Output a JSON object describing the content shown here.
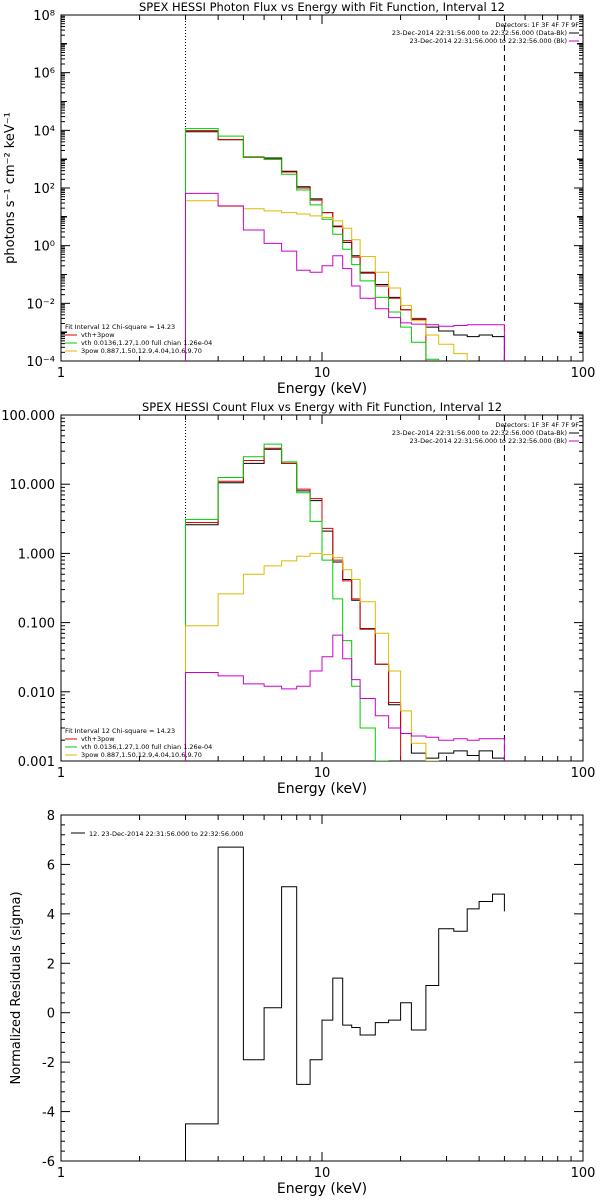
{
  "chart_data": [
    {
      "type": "line",
      "title": "SPEX HESSI Photon Flux vs Energy with Fit Function, Interval 12",
      "xlabel": "Energy (keV)",
      "ylabel": "photons s⁻¹ cm⁻² keV⁻¹",
      "xscale": "log",
      "yscale": "log",
      "xlim": [
        1,
        100
      ],
      "ylim": [
        0.0001,
        100000000
      ],
      "xticks": [
        "1",
        "10",
        "100"
      ],
      "yticks": [
        "10⁻⁴",
        "10⁻²",
        "10⁰",
        "10²",
        "10⁴",
        "10⁶",
        "10⁸"
      ],
      "vlines": [
        3.0,
        50.0
      ],
      "legend_top": {
        "detectors": "Detectors: 1F 3F 4F 7F 9F",
        "lines": [
          {
            "text": "23-Dec-2014 22:31:56.000 to 22:32:56.000 (Data-Bk)",
            "color": "#000000"
          },
          {
            "text": "23-Dec-2014 22:31:56.000 to 22:32:56.000 (Bk)",
            "color": "#cc00cc"
          }
        ]
      },
      "legend_bottom": [
        {
          "text": "Fit Interval 12   Chi-square = 14.23",
          "color": "#000000"
        },
        {
          "text": "vth+3pow",
          "color": "#dd0000"
        },
        {
          "text": "vth 0.0136,1.27,1.00  full chian 1.26e-04",
          "color": "#00cc00"
        },
        {
          "text": "3pow 0.887,1.50,12.9,4.04,10.6,9.70",
          "color": "#ddbb00"
        }
      ],
      "edges": [
        3.0,
        4.0,
        5.0,
        6.0,
        7.0,
        8.0,
        9.0,
        10.0,
        11.0,
        12.0,
        13.0,
        14.0,
        16.0,
        18.0,
        20.0,
        22.0,
        25.0,
        28.0,
        32.0,
        36.0,
        40.0,
        45.0,
        50.0
      ],
      "series": [
        {
          "name": "Data-Bk",
          "color": "#000000",
          "values": [
            9000,
            4700,
            1150,
            1100,
            380,
            110,
            42,
            14,
            4.5,
            1.3,
            0.45,
            0.12,
            0.045,
            0.016,
            0.006,
            0.0028,
            0.0015,
            0.0011,
            0.0008,
            0.0007,
            0.0008,
            0.0007
          ]
        },
        {
          "name": "vth+3pow",
          "color": "#dd0000",
          "values": [
            9800,
            4800,
            1200,
            1000,
            360,
            100,
            38,
            14,
            4.8,
            1.5,
            0.4,
            0.11,
            0.04,
            0.015,
            0.006,
            0.003
          ]
        },
        {
          "name": "vth",
          "color": "#00cc00",
          "values": [
            11500,
            6300,
            1150,
            1000,
            300,
            85,
            26,
            8.2,
            2.5,
            0.75,
            0.22,
            0.06,
            0.016,
            0.005,
            0.0015,
            0.00045,
            0.000115
          ]
        },
        {
          "name": "3pow",
          "color": "#ddbb00",
          "values": [
            36,
            23,
            19,
            16,
            14,
            12.5,
            10.8,
            9.5,
            7.2,
            4.0,
            1.6,
            0.42,
            0.12,
            0.034,
            0.0085,
            0.0025,
            0.0008,
            0.00038,
            0.00018
          ]
        },
        {
          "name": "Bk",
          "color": "#cc00cc",
          "values": [
            65,
            24,
            3.5,
            1.2,
            0.65,
            0.14,
            0.12,
            0.2,
            0.45,
            0.16,
            0.04,
            0.015,
            0.0065,
            0.0032,
            0.0021,
            0.0019,
            0.0018,
            0.0016,
            0.0017,
            0.0018,
            0.0018,
            0.0018
          ]
        }
      ]
    },
    {
      "type": "line",
      "title": "SPEX HESSI Count Flux vs Energy with Fit Function, Interval 12",
      "xlabel": "Energy (keV)",
      "ylabel": "",
      "xscale": "log",
      "yscale": "log",
      "xlim": [
        1,
        100
      ],
      "ylim": [
        0.001,
        100
      ],
      "xticks": [
        "1",
        "10",
        "100"
      ],
      "yticks": [
        "0.001",
        "0.010",
        "0.100",
        "1.000",
        "10.000",
        "100.000"
      ],
      "vlines": [
        3.0,
        50.0
      ],
      "legend_top": {
        "detectors": "Detectors: 1F 3F 4F 7F 9F",
        "lines": [
          {
            "text": "23-Dec-2014 22:31:56.000 to 22:32:56.000 (Data-Bk)",
            "color": "#000000"
          },
          {
            "text": "23-Dec-2014 22:31:56.000 to 22:32:56.000 (Bk)",
            "color": "#cc00cc"
          }
        ]
      },
      "legend_bottom": [
        {
          "text": "Fit Interval 12   Chi-square = 14.23",
          "color": "#000000"
        },
        {
          "text": "vth+3pow",
          "color": "#dd0000"
        },
        {
          "text": "vth 0.0136,1.27,1.00  full chian 1.26e-04",
          "color": "#00cc00"
        },
        {
          "text": "3pow 0.887,1.50,12.9,4.04,10.6,9.70",
          "color": "#ddbb00"
        }
      ],
      "edges": [
        3.0,
        4.0,
        5.0,
        6.0,
        7.0,
        8.0,
        9.0,
        10.0,
        11.0,
        12.0,
        13.0,
        14.0,
        16.0,
        18.0,
        20.0,
        22.0,
        25.0,
        28.0,
        32.0,
        36.0,
        40.0,
        45.0,
        50.0
      ],
      "series": [
        {
          "name": "Data-Bk",
          "color": "#000000",
          "values": [
            2.6,
            10.5,
            20,
            32,
            20,
            8.0,
            5.8,
            2.1,
            0.75,
            0.42,
            0.21,
            0.082,
            0.025,
            0.0065,
            0.0025,
            0.0013,
            0.0011,
            0.0013,
            0.0014,
            0.0012,
            0.0014,
            0.0011
          ]
        },
        {
          "name": "vth+3pow",
          "color": "#dd0000",
          "values": [
            2.8,
            11,
            22,
            33,
            20,
            8.5,
            6.2,
            2.3,
            0.8,
            0.4,
            0.22,
            0.08,
            0.025,
            0.007
          ]
        },
        {
          "name": "vth",
          "color": "#00cc00",
          "values": [
            3.1,
            12.5,
            25,
            38,
            21,
            7.5,
            2.9,
            0.8,
            0.22,
            0.055,
            0.012,
            0.003,
            0.001
          ]
        },
        {
          "name": "3pow",
          "color": "#ddbb00",
          "values": [
            0.09,
            0.26,
            0.5,
            0.66,
            0.78,
            0.91,
            1.0,
            0.96,
            0.87,
            0.58,
            0.42,
            0.2,
            0.07,
            0.02,
            0.0053,
            0.0018,
            0.001
          ]
        },
        {
          "name": "Bk",
          "color": "#cc00cc",
          "values": [
            0.019,
            0.017,
            0.013,
            0.012,
            0.011,
            0.012,
            0.02,
            0.032,
            0.066,
            0.03,
            0.015,
            0.008,
            0.0045,
            0.003,
            0.0025,
            0.0023,
            0.0022,
            0.002,
            0.0021,
            0.002,
            0.0021,
            0.0021
          ]
        }
      ]
    },
    {
      "type": "line",
      "title": "",
      "xlabel": "Energy (keV)",
      "ylabel": "Normalized Residuals (sigma)",
      "xscale": "log",
      "yscale": "linear",
      "xlim": [
        1,
        100
      ],
      "ylim": [
        -6,
        8
      ],
      "xticks": [
        "1",
        "10",
        "100"
      ],
      "yticks": [
        "-6",
        "-4",
        "-2",
        "0",
        "2",
        "4",
        "6",
        "8"
      ],
      "vlines": [],
      "legend_top": {
        "detectors": "",
        "lines": []
      },
      "legend_resid": "12. 23-Dec-2014 22:31:56.000 to 22:32:56.000",
      "legend_bottom": [],
      "edges": [
        3.0,
        4.0,
        5.0,
        6.0,
        7.0,
        8.0,
        9.0,
        10.0,
        11.0,
        12.0,
        13.0,
        14.0,
        16.0,
        18.0,
        20.0,
        22.0,
        25.0,
        28.0,
        32.0,
        36.0,
        40.0,
        45.0,
        50.0
      ],
      "series": [
        {
          "name": "12. 23-Dec-2014 22:31:56.000 to 22:32:56.000",
          "color": "#000000",
          "values": [
            -4.5,
            6.7,
            -1.9,
            0.2,
            5.1,
            -2.9,
            -1.9,
            -0.3,
            1.4,
            -0.5,
            -0.6,
            -0.9,
            -0.4,
            -0.3,
            0.4,
            -0.7,
            1.1,
            3.4,
            3.3,
            4.2,
            4.5,
            4.8,
            4.1
          ]
        }
      ]
    }
  ]
}
